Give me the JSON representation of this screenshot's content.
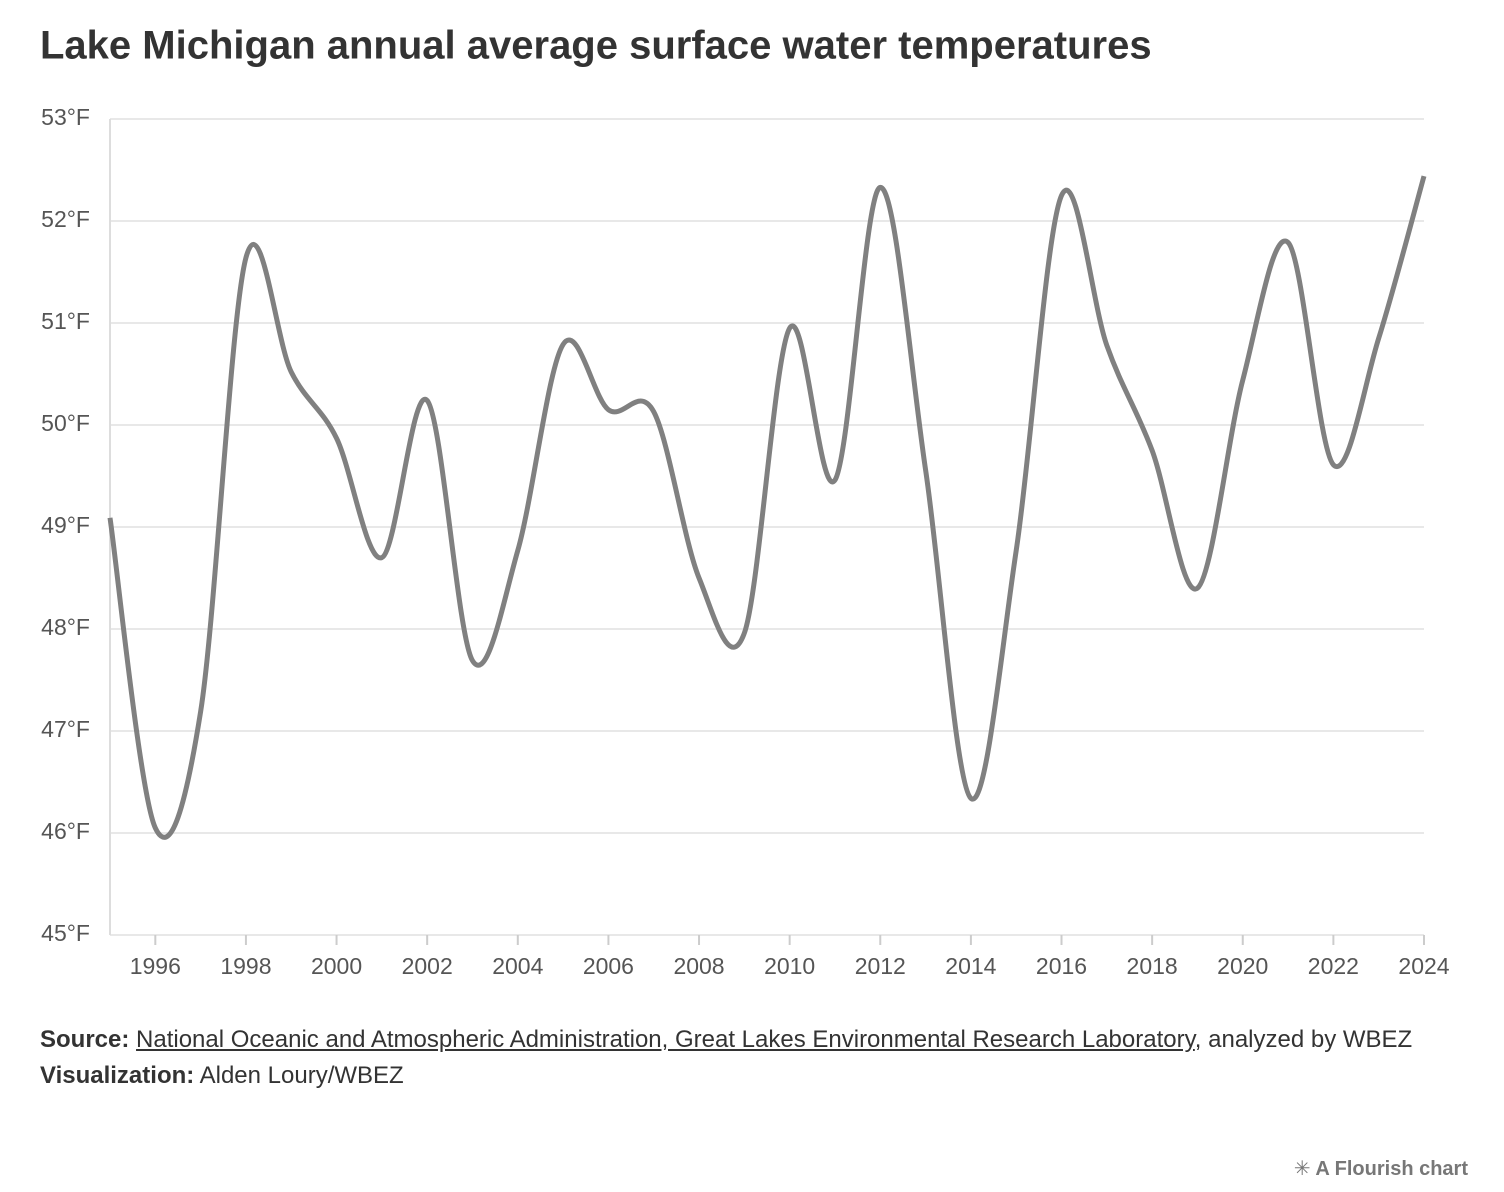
{
  "chart_data": {
    "type": "line",
    "title": "Lake Michigan annual average surface water temperatures",
    "x": [
      1995,
      1996,
      1997,
      1998,
      1999,
      2000,
      2001,
      2002,
      2003,
      2004,
      2005,
      2006,
      2007,
      2008,
      2009,
      2010,
      2011,
      2012,
      2013,
      2014,
      2015,
      2016,
      2017,
      2018,
      2019,
      2020,
      2021,
      2022,
      2023,
      2024
    ],
    "values": [
      49.09,
      46.05,
      47.19,
      51.64,
      50.52,
      49.87,
      48.7,
      50.24,
      47.69,
      48.77,
      50.79,
      50.15,
      50.13,
      48.5,
      47.96,
      50.95,
      49.46,
      52.33,
      49.56,
      46.34,
      48.77,
      52.25,
      50.78,
      49.75,
      48.4,
      50.44,
      51.79,
      49.61,
      50.85,
      52.44
    ],
    "color": "#808080",
    "xlim": [
      1995,
      2024
    ],
    "xticks": [
      1996,
      1998,
      2000,
      2002,
      2004,
      2006,
      2008,
      2010,
      2012,
      2014,
      2016,
      2018,
      2020,
      2022,
      2024
    ],
    "ylim": [
      45,
      53
    ],
    "yticks": [
      {
        "value": 45,
        "label": "45°F"
      },
      {
        "value": 46,
        "label": "46°F"
      },
      {
        "value": 47,
        "label": "47°F"
      },
      {
        "value": 48,
        "label": "48°F"
      },
      {
        "value": 49,
        "label": "49°F"
      },
      {
        "value": 50,
        "label": "50°F"
      },
      {
        "value": 51,
        "label": "51°F"
      },
      {
        "value": 52,
        "label": "52°F"
      },
      {
        "value": 53,
        "label": "53°F"
      }
    ],
    "grid": true
  },
  "footer": {
    "source_label": "Source:",
    "source_link": "National Oceanic and Atmospheric Administration, Great Lakes Environmental Research Laboratory",
    "source_rest": ", analyzed by WBEZ",
    "viz_label": "Visualization:",
    "viz_text": "Alden Loury/WBEZ",
    "credit": "A Flourish chart"
  }
}
